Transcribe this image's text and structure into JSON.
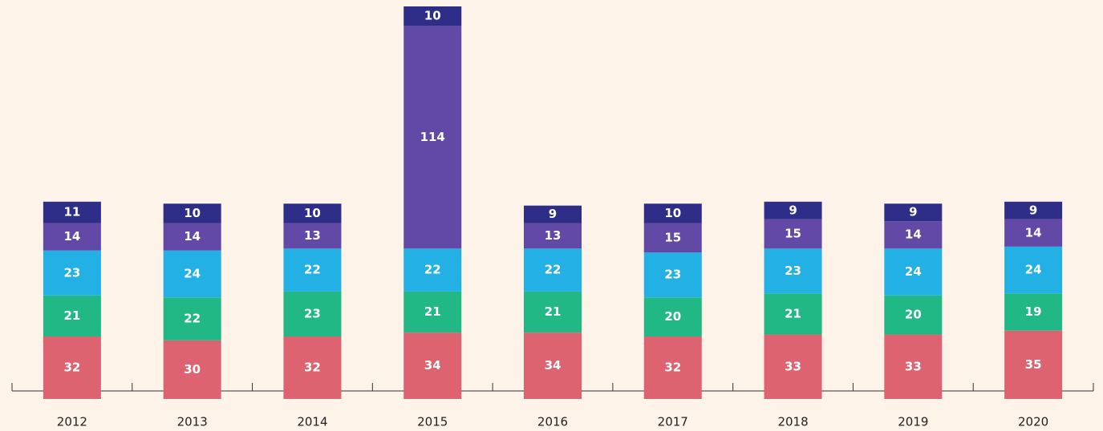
{
  "chart_data": {
    "type": "stacked_bar",
    "categories": [
      "2012",
      "2013",
      "2014",
      "2015",
      "2016",
      "2017",
      "2018",
      "2019",
      "2020"
    ],
    "series": [
      {
        "color": "#dd6370",
        "values": [
          32,
          30,
          32,
          34,
          34,
          32,
          33,
          33,
          35
        ]
      },
      {
        "color": "#21b886",
        "values": [
          21,
          22,
          23,
          21,
          21,
          20,
          21,
          20,
          19
        ]
      },
      {
        "color": "#22b0e5",
        "values": [
          23,
          24,
          22,
          22,
          22,
          23,
          23,
          24,
          24
        ]
      },
      {
        "color": "#6249a5",
        "values": [
          14,
          14,
          13,
          114,
          13,
          15,
          15,
          14,
          14
        ]
      },
      {
        "color": "#2e2d87",
        "values": [
          11,
          10,
          10,
          10,
          9,
          10,
          9,
          9,
          9
        ]
      }
    ]
  }
}
